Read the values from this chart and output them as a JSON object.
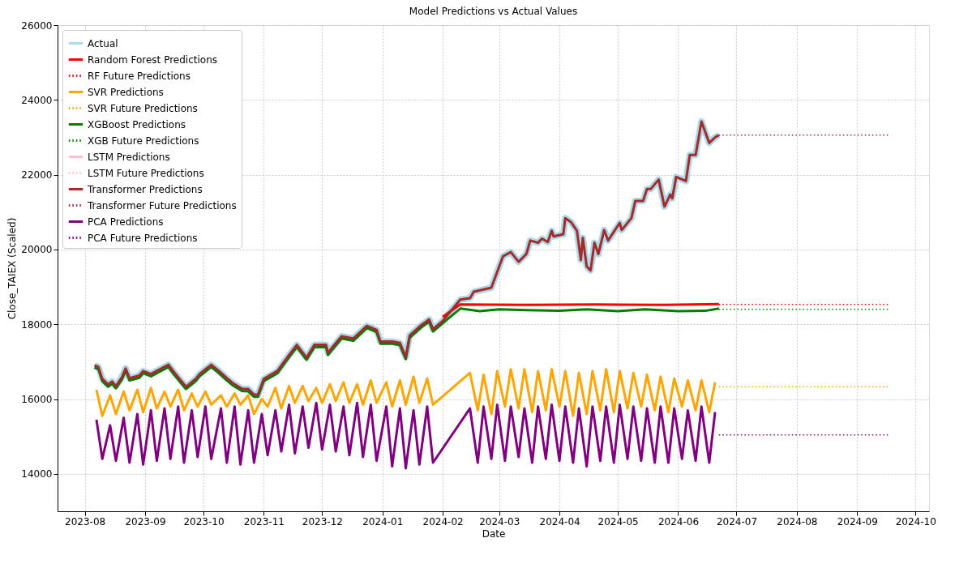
{
  "chart_data": {
    "type": "line",
    "title": "Model Predictions vs Actual Values",
    "xlabel": "Date",
    "ylabel": "Close_TAIEX (Scaled)",
    "xlim": [
      "2023-07-18",
      "2024-10-08"
    ],
    "xticks": [
      {
        "value": "2023-08",
        "label": "2023-08"
      },
      {
        "value": "2023-09",
        "label": "2023-09"
      },
      {
        "value": "2023-10",
        "label": "2023-10"
      },
      {
        "value": "2023-11",
        "label": "2023-11"
      },
      {
        "value": "2023-12",
        "label": "2023-12"
      },
      {
        "value": "2024-01",
        "label": "2024-01"
      },
      {
        "value": "2024-02",
        "label": "2024-02"
      },
      {
        "value": "2024-03",
        "label": "2024-03"
      },
      {
        "value": "2024-04",
        "label": "2024-04"
      },
      {
        "value": "2024-05",
        "label": "2024-05"
      },
      {
        "value": "2024-06",
        "label": "2024-06"
      },
      {
        "value": "2024-07",
        "label": "2024-07"
      },
      {
        "value": "2024-08",
        "label": "2024-08"
      },
      {
        "value": "2024-09",
        "label": "2024-09"
      },
      {
        "value": "2024-10",
        "label": "2024-10"
      }
    ],
    "ylim": [
      13000,
      26000
    ],
    "yticks": [
      14000,
      16000,
      18000,
      20000,
      22000,
      24000,
      26000
    ],
    "grid": true,
    "legend": "top left",
    "x": [
      "2023-08-06",
      "2023-08-08",
      "2023-08-10",
      "2023-08-13",
      "2023-08-15",
      "2023-08-17",
      "2023-08-20",
      "2023-08-22",
      "2023-08-24",
      "2023-08-29",
      "2023-08-31",
      "2023-09-04",
      "2023-09-13",
      "2023-09-16",
      "2023-09-19",
      "2023-09-22",
      "2023-09-27",
      "2023-09-29",
      "2023-10-05",
      "2023-10-09",
      "2023-10-13",
      "2023-10-16",
      "2023-10-21",
      "2023-10-24",
      "2023-10-27",
      "2023-10-29",
      "2023-11-01",
      "2023-11-08",
      "2023-11-14",
      "2023-11-18",
      "2023-11-23",
      "2023-11-27",
      "2023-12-03",
      "2023-12-04",
      "2023-12-11",
      "2023-12-17",
      "2023-12-24",
      "2023-12-29",
      "2023-12-31",
      "2024-01-06",
      "2024-01-10",
      "2024-01-13",
      "2024-01-15",
      "2024-01-21",
      "2024-01-25",
      "2024-01-27",
      "2024-02-01",
      "2024-02-10",
      "2024-02-15",
      "2024-02-17",
      "2024-02-22",
      "2024-02-26",
      "2024-03-03",
      "2024-03-07",
      "2024-03-11",
      "2024-03-15",
      "2024-03-17",
      "2024-03-21",
      "2024-03-23",
      "2024-03-26",
      "2024-03-28",
      "2024-03-29",
      "2024-04-03",
      "2024-04-04",
      "2024-04-07",
      "2024-04-10",
      "2024-04-12",
      "2024-04-13",
      "2024-04-15",
      "2024-04-17",
      "2024-04-19",
      "2024-04-21",
      "2024-04-24",
      "2024-04-26",
      "2024-05-02",
      "2024-05-03",
      "2024-05-08",
      "2024-05-10",
      "2024-05-14",
      "2024-05-16",
      "2024-05-18",
      "2024-05-22",
      "2024-05-25",
      "2024-05-28",
      "2024-05-29",
      "2024-05-31",
      "2024-06-05",
      "2024-06-07",
      "2024-06-10",
      "2024-06-13",
      "2024-06-17",
      "2024-06-20",
      "2024-06-22"
    ],
    "series": [
      {
        "name": "Actual",
        "color": "#add8e6",
        "line_style": "solid",
        "values": [
          16900,
          16860,
          16540,
          16390,
          16470,
          16350,
          16580,
          16820,
          16560,
          16630,
          16750,
          16670,
          16920,
          16710,
          16520,
          16330,
          16540,
          16670,
          16920,
          16750,
          16560,
          16430,
          16270,
          16270,
          16120,
          16120,
          16540,
          16750,
          17180,
          17450,
          17110,
          17450,
          17450,
          17240,
          17680,
          17620,
          17960,
          17850,
          17540,
          17540,
          17500,
          17130,
          17700,
          17980,
          18130,
          17870,
          18090,
          18660,
          18700,
          18870,
          18930,
          18980,
          19820,
          19930,
          19670,
          19880,
          20240,
          20180,
          20290,
          20200,
          20500,
          20350,
          20410,
          20840,
          20730,
          20500,
          19720,
          20310,
          19550,
          19440,
          20180,
          19880,
          20520,
          20240,
          20710,
          20520,
          20840,
          21300,
          21300,
          21620,
          21620,
          21870,
          21150,
          21470,
          21370,
          21940,
          21830,
          22530,
          22530,
          23420,
          22850,
          23000,
          23060
        ]
      },
      {
        "name": "Random Forest Predictions",
        "color": "#ff0000",
        "line_style": "solid",
        "x": [
          "2024-02-01",
          "2024-02-10",
          "2024-03-15",
          "2024-04-20",
          "2024-05-25",
          "2024-06-22"
        ],
        "values": [
          18200,
          18530,
          18520,
          18530,
          18520,
          18540
        ]
      },
      {
        "name": "RF Future Predictions",
        "color": "#ff0000",
        "line_style": "dotted",
        "x": [
          "2024-06-22",
          "2024-09-18"
        ],
        "values": [
          18530,
          18530
        ]
      },
      {
        "name": "SVR Predictions",
        "color": "#ffa500",
        "line_style": "solid",
        "x": [
          "2023-08-07",
          "2023-08-10",
          "2023-08-14",
          "2023-08-17",
          "2023-08-21",
          "2023-08-24",
          "2023-08-28",
          "2023-08-31",
          "2023-09-04",
          "2023-09-07",
          "2023-09-11",
          "2023-09-14",
          "2023-09-18",
          "2023-09-21",
          "2023-09-25",
          "2023-09-28",
          "2023-10-02",
          "2023-10-05",
          "2023-10-10",
          "2023-10-13",
          "2023-10-17",
          "2023-10-20",
          "2023-10-24",
          "2023-10-27",
          "2023-10-31",
          "2023-11-03",
          "2023-11-07",
          "2023-11-10",
          "2023-11-14",
          "2023-11-17",
          "2023-11-21",
          "2023-11-24",
          "2023-11-28",
          "2023-12-01",
          "2023-12-05",
          "2023-12-08",
          "2023-12-12",
          "2023-12-15",
          "2023-12-19",
          "2023-12-22",
          "2023-12-26",
          "2023-12-29",
          "2024-01-03",
          "2024-01-06",
          "2024-01-10",
          "2024-01-13",
          "2024-01-17",
          "2024-01-20",
          "2024-01-24",
          "2024-01-27",
          "2024-02-15",
          "2024-02-19",
          "2024-02-22",
          "2024-02-26",
          "2024-02-29",
          "2024-03-04",
          "2024-03-07",
          "2024-03-11",
          "2024-03-14",
          "2024-03-18",
          "2024-03-21",
          "2024-03-25",
          "2024-03-28",
          "2024-04-01",
          "2024-04-04",
          "2024-04-08",
          "2024-04-11",
          "2024-04-15",
          "2024-04-18",
          "2024-04-22",
          "2024-04-25",
          "2024-04-29",
          "2024-05-02",
          "2024-05-06",
          "2024-05-09",
          "2024-05-13",
          "2024-05-16",
          "2024-05-20",
          "2024-05-23",
          "2024-05-27",
          "2024-05-30",
          "2024-06-03",
          "2024-06-06",
          "2024-06-10",
          "2024-06-13",
          "2024-06-17",
          "2024-06-20"
        ],
        "values": [
          16250,
          15550,
          16100,
          15600,
          16200,
          15700,
          16250,
          15650,
          16300,
          15750,
          16200,
          15800,
          16250,
          15700,
          16150,
          15800,
          16200,
          15850,
          16100,
          15800,
          16150,
          15850,
          16100,
          15600,
          16000,
          15800,
          16300,
          15750,
          16350,
          15900,
          16350,
          15950,
          16300,
          15900,
          16400,
          15950,
          16450,
          15900,
          16400,
          15850,
          16500,
          15900,
          16450,
          15800,
          16500,
          15850,
          16600,
          15900,
          16550,
          15850,
          16700,
          15700,
          16650,
          15600,
          16750,
          15800,
          16800,
          15750,
          16800,
          15650,
          16750,
          15700,
          16800,
          15800,
          16750,
          15550,
          16700,
          15600,
          16750,
          15700,
          16800,
          15650,
          16750,
          15750,
          16700,
          15800,
          16650,
          15700,
          16600,
          15650,
          16550,
          15800,
          16500,
          15700,
          16500,
          15650,
          16450
        ]
      },
      {
        "name": "SVR Future Predictions",
        "color": "#ffa500",
        "line_style": "dotted",
        "x": [
          "2024-06-22",
          "2024-09-18"
        ],
        "values": [
          16330,
          16330
        ]
      },
      {
        "name": "XGBoost Predictions",
        "color": "#008000",
        "line_style": "solid",
        "x": [
          "2023-08-06",
          "2023-08-08",
          "2023-08-10",
          "2023-08-13",
          "2023-08-15",
          "2023-08-17",
          "2023-08-20",
          "2023-08-22",
          "2023-08-24",
          "2023-08-29",
          "2023-08-31",
          "2023-09-04",
          "2023-09-13",
          "2023-09-16",
          "2023-09-19",
          "2023-09-22",
          "2023-09-27",
          "2023-09-29",
          "2023-10-05",
          "2023-10-09",
          "2023-10-13",
          "2023-10-16",
          "2023-10-21",
          "2023-10-24",
          "2023-10-27",
          "2023-10-29",
          "2023-11-01",
          "2023-11-08",
          "2023-11-14",
          "2023-11-18",
          "2023-11-23",
          "2023-11-27",
          "2023-12-03",
          "2023-12-04",
          "2023-12-11",
          "2023-12-17",
          "2023-12-24",
          "2023-12-29",
          "2023-12-31",
          "2024-01-06",
          "2024-01-10",
          "2024-01-13",
          "2024-01-15",
          "2024-01-21",
          "2024-01-25",
          "2024-01-27",
          "2024-02-01",
          "2024-02-10",
          "2024-02-20",
          "2024-03-01",
          "2024-03-15",
          "2024-04-01",
          "2024-04-15",
          "2024-05-01",
          "2024-05-15",
          "2024-06-01",
          "2024-06-15",
          "2024-06-22"
        ],
        "values": [
          16840,
          16800,
          16480,
          16330,
          16410,
          16290,
          16520,
          16760,
          16500,
          16570,
          16690,
          16610,
          16860,
          16650,
          16460,
          16270,
          16480,
          16610,
          16860,
          16690,
          16500,
          16370,
          16210,
          16210,
          16060,
          16060,
          16480,
          16690,
          17120,
          17390,
          17050,
          17390,
          17390,
          17180,
          17620,
          17560,
          17900,
          17790,
          17480,
          17480,
          17440,
          17070,
          17640,
          17920,
          18070,
          17810,
          18030,
          18420,
          18350,
          18400,
          18380,
          18360,
          18400,
          18350,
          18400,
          18350,
          18360,
          18420
        ]
      },
      {
        "name": "XGB Future Predictions",
        "color": "#008000",
        "line_style": "dotted",
        "x": [
          "2024-06-22",
          "2024-09-18"
        ],
        "values": [
          18400,
          18400
        ]
      },
      {
        "name": "LSTM Predictions",
        "color": "#ffc0cb",
        "line_style": "solid",
        "values": [
          null,
          null,
          null,
          null,
          null,
          null,
          null,
          null,
          null,
          null,
          null,
          null,
          null,
          null,
          null,
          null,
          null,
          null,
          null,
          null,
          null,
          null,
          null,
          null,
          null,
          null,
          null,
          null,
          null,
          null,
          null,
          null,
          null,
          null,
          null,
          null,
          null,
          null,
          null,
          null,
          null,
          null,
          null,
          null,
          null,
          null,
          null,
          null,
          null,
          null,
          null,
          null,
          null,
          null,
          null,
          null,
          null,
          null,
          null,
          null,
          null,
          null,
          null,
          null,
          null,
          null,
          null,
          null,
          null,
          null,
          null,
          null,
          null,
          null,
          null,
          null,
          null,
          null,
          null,
          null,
          null,
          null,
          null,
          null,
          null,
          null,
          null,
          null,
          null,
          null,
          null,
          null,
          null
        ]
      },
      {
        "name": "LSTM Future Predictions",
        "color": "#ffc0cb",
        "line_style": "dotted",
        "values": [
          null,
          null,
          null,
          null,
          null,
          null,
          null,
          null,
          null,
          null,
          null,
          null,
          null,
          null,
          null,
          null,
          null,
          null,
          null,
          null,
          null,
          null,
          null,
          null,
          null,
          null,
          null,
          null,
          null,
          null,
          null,
          null,
          null,
          null,
          null,
          null,
          null,
          null,
          null,
          null,
          null,
          null,
          null,
          null,
          null,
          null,
          null,
          null,
          null,
          null,
          null,
          null,
          null,
          null,
          null,
          null,
          null,
          null,
          null,
          null,
          null,
          null,
          null,
          null,
          null,
          null,
          null,
          null,
          null,
          null,
          null,
          null,
          null,
          null,
          null,
          null,
          null,
          null,
          null,
          null,
          null,
          null,
          null,
          null,
          null,
          null,
          null,
          null,
          null,
          null,
          null,
          null,
          null
        ]
      },
      {
        "name": "Transformer Predictions",
        "color": "#a52a2a",
        "line_style": "solid",
        "values": [
          16900,
          16860,
          16540,
          16390,
          16470,
          16350,
          16580,
          16820,
          16560,
          16630,
          16750,
          16670,
          16920,
          16710,
          16520,
          16330,
          16540,
          16670,
          16920,
          16750,
          16560,
          16430,
          16270,
          16270,
          16120,
          16120,
          16540,
          16750,
          17180,
          17450,
          17110,
          17450,
          17450,
          17240,
          17680,
          17620,
          17960,
          17850,
          17540,
          17540,
          17500,
          17130,
          17700,
          17980,
          18130,
          17870,
          18090,
          18660,
          18700,
          18870,
          18930,
          18980,
          19820,
          19930,
          19670,
          19880,
          20240,
          20180,
          20290,
          20200,
          20500,
          20350,
          20410,
          20840,
          20730,
          20500,
          19720,
          20310,
          19550,
          19440,
          20180,
          19880,
          20520,
          20240,
          20710,
          20520,
          20840,
          21300,
          21300,
          21620,
          21620,
          21870,
          21150,
          21470,
          21370,
          21940,
          21830,
          22530,
          22530,
          23420,
          22850,
          23000,
          23060
        ]
      },
      {
        "name": "Transformer Future Predictions",
        "color": "#a52a2a",
        "line_style": "dotted",
        "x": [
          "2024-06-22",
          "2024-09-18"
        ],
        "values": [
          23060,
          23060
        ]
      },
      {
        "name": "PCA Predictions",
        "color": "#800080",
        "line_style": "solid",
        "x": [
          "2023-08-07",
          "2023-08-10",
          "2023-08-14",
          "2023-08-17",
          "2023-08-21",
          "2023-08-24",
          "2023-08-28",
          "2023-08-31",
          "2023-09-04",
          "2023-09-07",
          "2023-09-11",
          "2023-09-14",
          "2023-09-18",
          "2023-09-21",
          "2023-09-25",
          "2023-09-28",
          "2023-10-02",
          "2023-10-05",
          "2023-10-10",
          "2023-10-13",
          "2023-10-17",
          "2023-10-20",
          "2023-10-24",
          "2023-10-27",
          "2023-10-31",
          "2023-11-03",
          "2023-11-07",
          "2023-11-10",
          "2023-11-14",
          "2023-11-17",
          "2023-11-21",
          "2023-11-24",
          "2023-11-28",
          "2023-12-01",
          "2023-12-05",
          "2023-12-08",
          "2023-12-12",
          "2023-12-15",
          "2023-12-19",
          "2023-12-22",
          "2023-12-26",
          "2023-12-29",
          "2024-01-03",
          "2024-01-06",
          "2024-01-10",
          "2024-01-13",
          "2024-01-17",
          "2024-01-20",
          "2024-01-24",
          "2024-01-27",
          "2024-02-15",
          "2024-02-19",
          "2024-02-22",
          "2024-02-26",
          "2024-02-29",
          "2024-03-04",
          "2024-03-07",
          "2024-03-11",
          "2024-03-14",
          "2024-03-18",
          "2024-03-21",
          "2024-03-25",
          "2024-03-28",
          "2024-04-01",
          "2024-04-04",
          "2024-04-08",
          "2024-04-11",
          "2024-04-15",
          "2024-04-18",
          "2024-04-22",
          "2024-04-25",
          "2024-04-29",
          "2024-05-02",
          "2024-05-06",
          "2024-05-09",
          "2024-05-13",
          "2024-05-16",
          "2024-05-20",
          "2024-05-23",
          "2024-05-27",
          "2024-05-30",
          "2024-06-03",
          "2024-06-06",
          "2024-06-10",
          "2024-06-13",
          "2024-06-17",
          "2024-06-20"
        ],
        "values": [
          15450,
          14400,
          15300,
          14350,
          15500,
          14300,
          15600,
          14250,
          15700,
          14350,
          15750,
          14400,
          15800,
          14300,
          15700,
          14450,
          15800,
          14400,
          15750,
          14300,
          15800,
          14250,
          15700,
          14300,
          15600,
          14500,
          15700,
          14600,
          15850,
          14550,
          15800,
          14700,
          15900,
          14650,
          15850,
          14600,
          15800,
          14500,
          15900,
          14450,
          15850,
          14350,
          15800,
          14200,
          15750,
          14150,
          15700,
          14250,
          15800,
          14300,
          15750,
          14300,
          15800,
          14400,
          15850,
          14350,
          15800,
          14450,
          15750,
          14300,
          15800,
          14400,
          15850,
          14350,
          15800,
          14300,
          15750,
          14200,
          15800,
          14350,
          15800,
          14300,
          15850,
          14400,
          15800,
          14350,
          15750,
          14300,
          15800,
          14300,
          15750,
          14400,
          15700,
          14350,
          15800,
          14300,
          15650
        ]
      },
      {
        "name": "PCA Future Predictions",
        "color": "#800080",
        "line_style": "dotted",
        "x": [
          "2024-06-22",
          "2024-09-18"
        ],
        "values": [
          15040,
          15040
        ]
      }
    ]
  }
}
